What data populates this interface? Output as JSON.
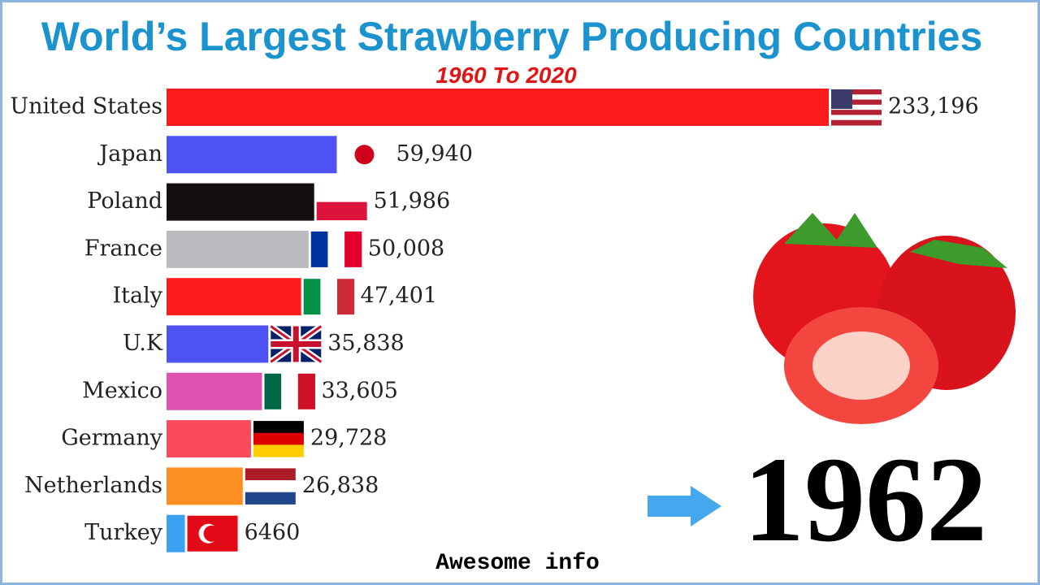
{
  "chart_data": {
    "type": "bar",
    "orientation": "horizontal",
    "title": "World’s Largest Strawberry Producing Countries",
    "subtitle": "1960 To 2020",
    "year": 1962,
    "footer": "Awesome info",
    "categories": [
      "United States",
      "Japan",
      "Poland",
      "France",
      "Italy",
      "U.K",
      "Mexico",
      "Germany",
      "Netherlands",
      "Turkey"
    ],
    "values": [
      233196,
      59940,
      51986,
      50008,
      47401,
      35838,
      33605,
      29728,
      26838,
      6460
    ],
    "value_labels": [
      "233,196",
      "59,940",
      "51,986",
      "50,008",
      "47,401",
      "35,838",
      "33,605",
      "29,728",
      "26,838",
      "6460"
    ],
    "colors": [
      "#fe1b1b",
      "#4e52f5",
      "#160f12",
      "#bbbbbf",
      "#fe1b1b",
      "#4e52f5",
      "#e052b0",
      "#fb4a5c",
      "#fd8f22",
      "#3aa2f0"
    ]
  }
}
